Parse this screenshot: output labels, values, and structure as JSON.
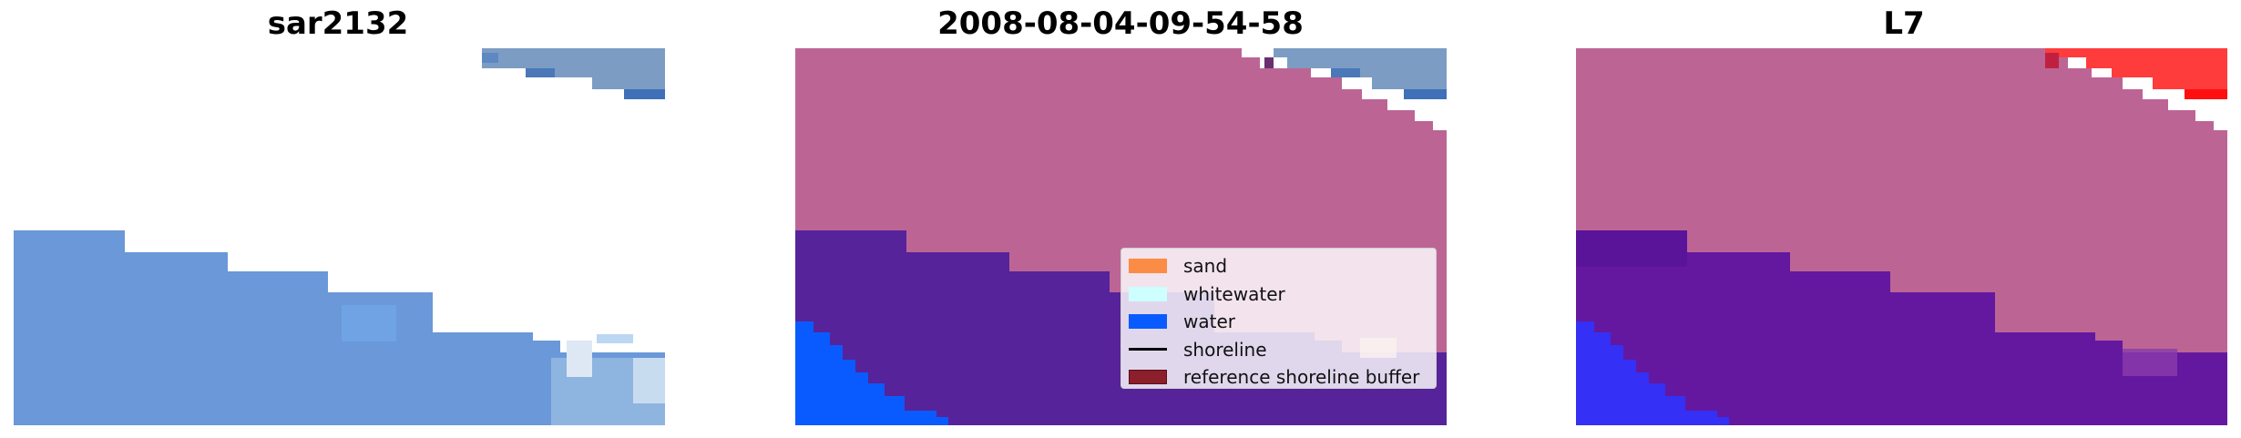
{
  "panels": [
    {
      "title": "sar2132"
    },
    {
      "title": "2008-08-04-09-54-58"
    },
    {
      "title": "L7"
    }
  ],
  "legend": {
    "items": [
      {
        "label": "sand",
        "color": "#fb8c45",
        "kind": "patch"
      },
      {
        "label": "whitewater",
        "color": "#cdfffe",
        "kind": "patch"
      },
      {
        "label": "water",
        "color": "#0a5bff",
        "kind": "patch"
      },
      {
        "label": "shoreline",
        "color": "#000000",
        "kind": "line"
      },
      {
        "label": "reference shoreline buffer",
        "color": "#8b1f2b",
        "kind": "patch"
      }
    ]
  },
  "colors": {
    "water_blue": "#6a98d8",
    "land_mauve": "#bc6595",
    "sea_purple": "#56239a",
    "bright_water": "#0a5bff",
    "red_patch": "#ff3030"
  }
}
